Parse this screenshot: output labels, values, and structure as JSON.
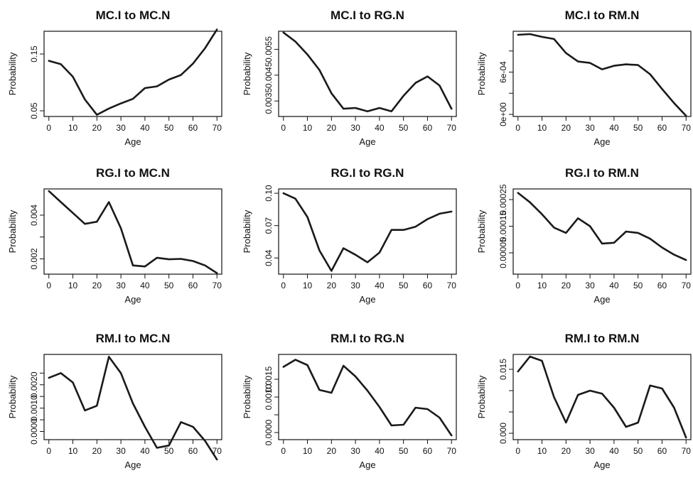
{
  "chart_data": [
    {
      "type": "line",
      "title": "MC.I to MC.N",
      "xlabel": "Age",
      "ylabel": "Probability",
      "xlim": [
        -2,
        72
      ],
      "ylim": [
        0.04,
        0.19
      ],
      "xticks": [
        0,
        10,
        20,
        30,
        40,
        50,
        60,
        70
      ],
      "yticks": [
        0.05,
        0.15
      ],
      "ytick_labels": [
        "0.05",
        "0.15"
      ],
      "x": [
        0,
        5,
        10,
        15,
        20,
        25,
        30,
        35,
        40,
        45,
        50,
        55,
        60,
        65,
        70
      ],
      "values": [
        0.138,
        0.132,
        0.11,
        0.07,
        0.043,
        0.054,
        0.063,
        0.071,
        0.09,
        0.093,
        0.105,
        0.113,
        0.133,
        0.16,
        0.193
      ]
    },
    {
      "type": "line",
      "title": "MC.I to RG.N",
      "xlabel": "Age",
      "ylabel": "Probability",
      "xlim": [
        -2,
        72
      ],
      "ylim": [
        0.0029,
        0.0062
      ],
      "xticks": [
        0,
        10,
        20,
        30,
        40,
        50,
        60,
        70
      ],
      "yticks": [
        0.0035,
        0.0045,
        0.0055
      ],
      "ytick_labels": [
        "0.0035",
        "0.0045",
        "0.0055"
      ],
      "x": [
        0,
        5,
        10,
        15,
        20,
        25,
        30,
        35,
        40,
        45,
        50,
        55,
        60,
        65,
        70
      ],
      "values": [
        0.00615,
        0.0058,
        0.0053,
        0.0047,
        0.0038,
        0.0032,
        0.00323,
        0.0031,
        0.00323,
        0.0031,
        0.0037,
        0.0042,
        0.00445,
        0.0041,
        0.0032
      ]
    },
    {
      "type": "line",
      "title": "MC.I to RM.N",
      "xlabel": "Age",
      "ylabel": "Probability",
      "xlim": [
        -2,
        72
      ],
      "ylim": [
        -3e-05,
        0.00118
      ],
      "xticks": [
        0,
        10,
        20,
        30,
        40,
        50,
        60,
        70
      ],
      "yticks": [
        0,
        0.0003,
        0.0006,
        0.0009
      ],
      "ytick_labels": [
        "0e+00",
        "",
        "6e-04",
        ""
      ],
      "x": [
        0,
        5,
        10,
        15,
        20,
        25,
        30,
        35,
        40,
        45,
        50,
        55,
        60,
        65,
        70
      ],
      "values": [
        0.00113,
        0.00114,
        0.0011,
        0.00107,
        0.00087,
        0.00075,
        0.00073,
        0.00064,
        0.00069,
        0.00071,
        0.0007,
        0.00057,
        0.00036,
        0.00016,
        -2e-05
      ]
    },
    {
      "type": "line",
      "title": "RG.I to MC.N",
      "xlabel": "Age",
      "ylabel": "Probability",
      "xlim": [
        -2,
        72
      ],
      "ylim": [
        0.0013,
        0.0052
      ],
      "xticks": [
        0,
        10,
        20,
        30,
        40,
        50,
        60,
        70
      ],
      "yticks": [
        0.002,
        0.003,
        0.004
      ],
      "ytick_labels": [
        "0.002",
        "",
        "0.004"
      ],
      "x": [
        0,
        5,
        10,
        15,
        20,
        25,
        30,
        35,
        40,
        45,
        50,
        55,
        60,
        65,
        70
      ],
      "values": [
        0.0051,
        0.0046,
        0.0041,
        0.0036,
        0.0037,
        0.0046,
        0.0034,
        0.0017,
        0.00165,
        0.00205,
        0.00198,
        0.002,
        0.0019,
        0.0017,
        0.00135
      ]
    },
    {
      "type": "line",
      "title": "RG.I to RG.N",
      "xlabel": "Age",
      "ylabel": "Probability",
      "xlim": [
        -2,
        72
      ],
      "ylim": [
        0.025,
        0.104
      ],
      "xticks": [
        0,
        10,
        20,
        30,
        40,
        50,
        60,
        70
      ],
      "yticks": [
        0.04,
        0.07,
        0.1
      ],
      "ytick_labels": [
        "0.04",
        "0.07",
        "0.10"
      ],
      "x": [
        0,
        5,
        10,
        15,
        20,
        25,
        30,
        35,
        40,
        45,
        50,
        55,
        60,
        65,
        70
      ],
      "values": [
        0.1,
        0.095,
        0.078,
        0.047,
        0.028,
        0.049,
        0.043,
        0.036,
        0.045,
        0.066,
        0.066,
        0.069,
        0.076,
        0.081,
        0.083
      ]
    },
    {
      "type": "line",
      "title": "RG.I to RM.N",
      "xlabel": "Age",
      "ylabel": "Probability",
      "xlim": [
        -2,
        72
      ],
      "ylim": [
        -3e-05,
        0.00029
      ],
      "xticks": [
        0,
        10,
        20,
        30,
        40,
        50,
        60,
        70
      ],
      "yticks": [
        5e-05,
        0.00015,
        0.00025
      ],
      "ytick_labels": [
        "0.00005",
        "0.00015",
        "0.00025"
      ],
      "x": [
        0,
        5,
        10,
        15,
        20,
        25,
        30,
        35,
        40,
        45,
        50,
        55,
        60,
        65,
        70
      ],
      "values": [
        0.000275,
        0.00024,
        0.000195,
        0.000145,
        0.000125,
        0.00018,
        0.00015,
        8.5e-05,
        8.8e-05,
        0.00013,
        0.000125,
        0.000103,
        7e-05,
        4.3e-05,
        2.3e-05
      ]
    },
    {
      "type": "line",
      "title": "RM.I to MC.N",
      "xlabel": "Age",
      "ylabel": "Probability",
      "xlim": [
        -2,
        72
      ],
      "ylim": [
        -0.00035,
        0.0033
      ],
      "xticks": [
        0,
        10,
        20,
        30,
        40,
        50,
        60,
        70
      ],
      "yticks": [
        0,
        0.0005,
        0.001,
        0.0015,
        0.002,
        0.0025
      ],
      "ytick_labels": [
        "0.0000",
        "",
        "0.0010",
        "",
        "0.0020",
        ""
      ],
      "x": [
        0,
        5,
        10,
        15,
        20,
        25,
        30,
        35,
        40,
        45,
        50,
        55,
        60,
        65,
        70
      ],
      "values": [
        0.0023,
        0.0025,
        0.0021,
        0.0009,
        0.0011,
        0.0032,
        0.0025,
        0.0012,
        0.0002,
        -0.0007,
        -0.0006,
        0.0004,
        0.0002,
        -0.0004,
        -0.0012
      ]
    },
    {
      "type": "line",
      "title": "RM.I to RG.N",
      "xlabel": "Age",
      "ylabel": "Probability",
      "xlim": [
        -2,
        72
      ],
      "ylim": [
        -0.0002,
        0.0022
      ],
      "xticks": [
        0,
        10,
        20,
        30,
        40,
        50,
        60,
        70
      ],
      "yticks": [
        0,
        0.0005,
        0.001,
        0.0015
      ],
      "ytick_labels": [
        "0.0000",
        "",
        "0.0010",
        "0.0015"
      ],
      "x": [
        0,
        5,
        10,
        15,
        20,
        25,
        30,
        35,
        40,
        45,
        50,
        55,
        60,
        65,
        70
      ],
      "values": [
        0.00185,
        0.00205,
        0.0019,
        0.0012,
        0.00112,
        0.00188,
        0.00158,
        0.00118,
        0.00072,
        0.0002,
        0.00022,
        0.0007,
        0.00066,
        0.00042,
        -8e-05
      ]
    },
    {
      "type": "line",
      "title": "RM.I to RM.N",
      "xlabel": "Age",
      "ylabel": "Probability",
      "xlim": [
        -2,
        72
      ],
      "ylim": [
        -0.0015,
        0.0185
      ],
      "xticks": [
        0,
        10,
        20,
        30,
        40,
        50,
        60,
        70
      ],
      "yticks": [
        0,
        0.005,
        0.01,
        0.015
      ],
      "ytick_labels": [
        "0.000",
        "",
        "",
        "0.015"
      ],
      "x": [
        0,
        5,
        10,
        15,
        20,
        25,
        30,
        35,
        40,
        45,
        50,
        55,
        60,
        65,
        70
      ],
      "values": [
        0.0145,
        0.018,
        0.017,
        0.0085,
        0.0025,
        0.009,
        0.01,
        0.0093,
        0.006,
        0.0015,
        0.0025,
        0.0112,
        0.0105,
        0.006,
        -0.001
      ]
    }
  ]
}
